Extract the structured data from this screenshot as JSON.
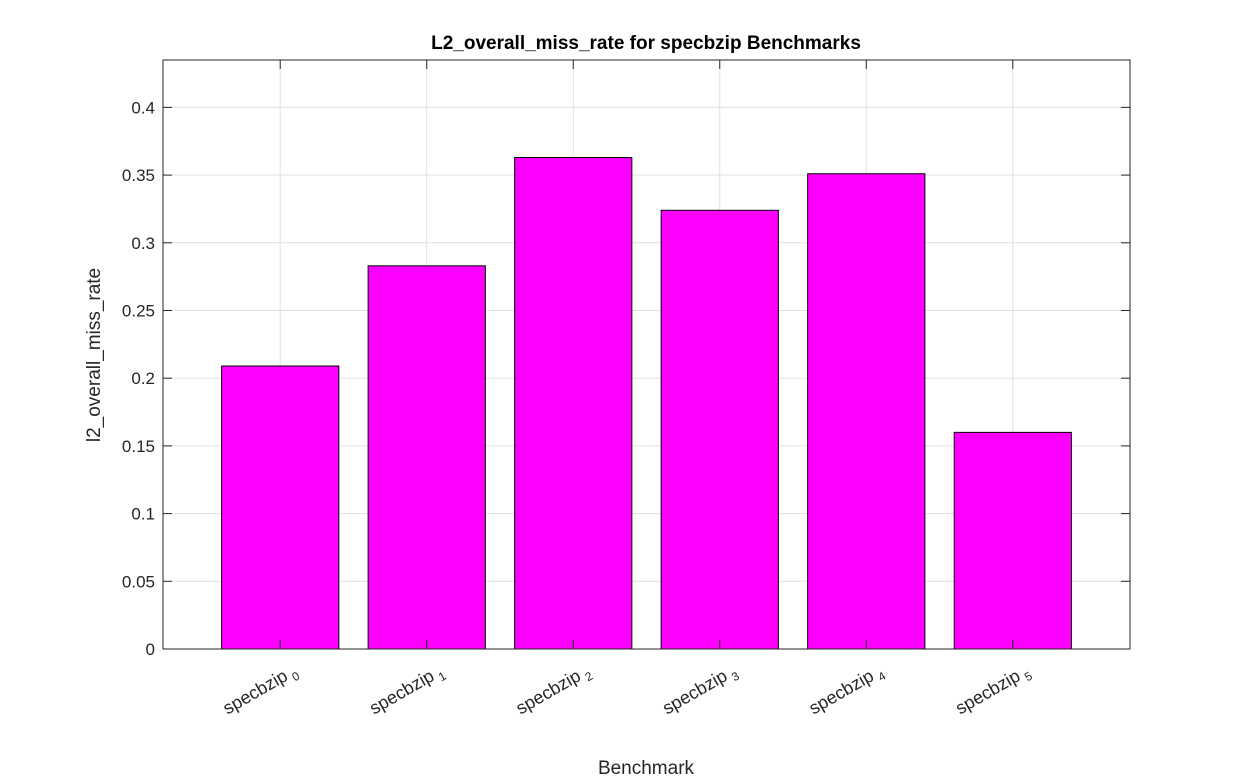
{
  "chart_data": {
    "type": "bar",
    "title": "L2_overall_miss_rate for specbzip Benchmarks",
    "xlabel": "Benchmark",
    "ylabel": "l2_overall_miss_rate",
    "categories": [
      {
        "base": "specbzip",
        "sub": "0"
      },
      {
        "base": "specbzip",
        "sub": "1"
      },
      {
        "base": "specbzip",
        "sub": "2"
      },
      {
        "base": "specbzip",
        "sub": "3"
      },
      {
        "base": "specbzip",
        "sub": "4"
      },
      {
        "base": "specbzip",
        "sub": "5"
      }
    ],
    "values": [
      0.209,
      0.283,
      0.363,
      0.324,
      0.351,
      0.16
    ],
    "ylim": [
      0,
      0.435
    ],
    "yticks": [
      "0",
      "0.05",
      "0.1",
      "0.15",
      "0.2",
      "0.25",
      "0.3",
      "0.35",
      "0.4"
    ],
    "bar_color": "#ff00ff",
    "grid": true
  }
}
